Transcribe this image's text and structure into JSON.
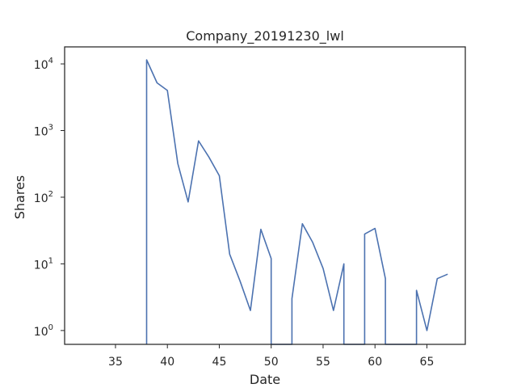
{
  "chart_data": {
    "type": "line",
    "title": "Company_20191230_lwl",
    "xlabel": "Date",
    "ylabel": "Shares",
    "yscale": "log",
    "xlim": [
      30.1,
      68.7
    ],
    "ylim": [
      0.62,
      18000
    ],
    "xticks": [
      35,
      40,
      45,
      50,
      55,
      60,
      65
    ],
    "yticks": [
      {
        "value": 1,
        "base": "10",
        "exp": "0"
      },
      {
        "value": 10,
        "base": "10",
        "exp": "1"
      },
      {
        "value": 100,
        "base": "10",
        "exp": "2"
      },
      {
        "value": 1000,
        "base": "10",
        "exp": "3"
      },
      {
        "value": 10000,
        "base": "10",
        "exp": "4"
      }
    ],
    "grid": false,
    "series": [
      {
        "color": "#4c72b0",
        "points": [
          [
            38,
            0
          ],
          [
            38,
            11500
          ],
          [
            39,
            5200
          ],
          [
            40,
            4000
          ],
          [
            41,
            320
          ],
          [
            42,
            85
          ],
          [
            43,
            700
          ],
          [
            44,
            400
          ],
          [
            45,
            210
          ],
          [
            46,
            14
          ],
          [
            47,
            5.5
          ],
          [
            48,
            2
          ],
          [
            49,
            33
          ],
          [
            50,
            12
          ],
          [
            50,
            0
          ],
          [
            52,
            0
          ],
          [
            52,
            3
          ],
          [
            53,
            40
          ],
          [
            54,
            21
          ],
          [
            55,
            8.5
          ],
          [
            56,
            2
          ],
          [
            57,
            10
          ],
          [
            57,
            0
          ],
          [
            59,
            0
          ],
          [
            59,
            28
          ],
          [
            60,
            34
          ],
          [
            61,
            6
          ],
          [
            61,
            0
          ],
          [
            64,
            0
          ],
          [
            64,
            4
          ],
          [
            65,
            1
          ],
          [
            66,
            6
          ],
          [
            67,
            7
          ]
        ]
      }
    ]
  }
}
